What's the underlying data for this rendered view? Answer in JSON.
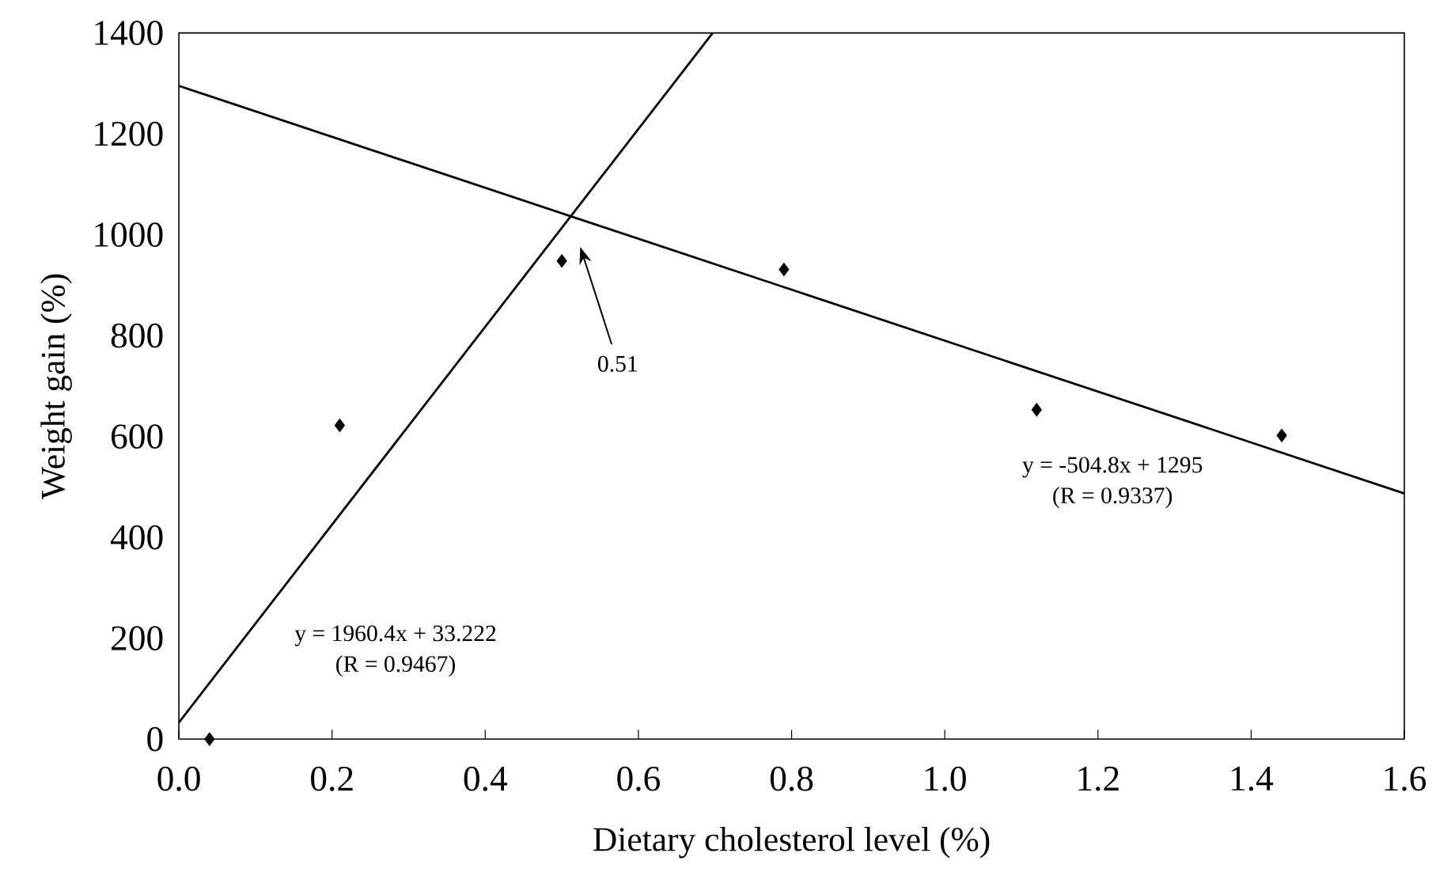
{
  "chart_data": {
    "type": "scatter",
    "xlabel": "Dietary cholesterol level (%)",
    "ylabel": "Weight gain (%)",
    "xlim": [
      0,
      1.6
    ],
    "xticks": [
      {
        "value": 0,
        "label": "0.0"
      },
      0.2,
      0.4,
      0.6,
      0.8,
      {
        "value": 1,
        "label": "1.0"
      },
      1.2,
      1.4,
      1.6
    ],
    "ylim": [
      0,
      1400
    ],
    "yticks": [
      0,
      200,
      400,
      600,
      800,
      1000,
      1200,
      1400
    ],
    "series": [
      {
        "marker": "diamond",
        "color": "#000000",
        "x": [
          0.04,
          0.21,
          0.5,
          0.79,
          1.12,
          1.44
        ],
        "values": [
          0,
          622,
          948,
          931,
          653,
          602
        ]
      },
      {
        "type": "line",
        "color": "#000000",
        "x": [
          0,
          0.697
        ],
        "values": [
          33,
          1400
        ]
      },
      {
        "type": "line",
        "color": "#000000",
        "x": [
          0,
          1.6
        ],
        "values": [
          1295,
          487
        ]
      }
    ],
    "annotations": [
      "y = 1960.4x + 33.222",
      "(R = 0.9467)",
      "y = -504.8x + 1295",
      "(R = 0.9337)",
      "0.51"
    ]
  }
}
